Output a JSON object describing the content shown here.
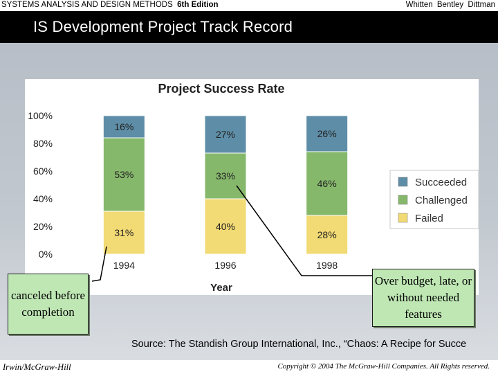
{
  "header": {
    "book_title": "SYSTEMS ANALYSIS AND DESIGN METHODS",
    "edition": "6th Edition",
    "authors": "Whitten  Bentley  Dittman"
  },
  "slide": {
    "title": "IS Development Project Track Record"
  },
  "chart_data": {
    "type": "bar",
    "stacked": true,
    "title": "Project Success Rate",
    "xlabel": "Year",
    "ylabel": "",
    "ylim": [
      0,
      100
    ],
    "yticks": [
      "0%",
      "20%",
      "40%",
      "60%",
      "80%",
      "100%"
    ],
    "categories": [
      "1994",
      "1996",
      "1998"
    ],
    "series": [
      {
        "name": "Failed",
        "values": [
          31,
          40,
          28
        ],
        "labels": [
          "31%",
          "40%",
          "28%"
        ],
        "color": "#f2da74"
      },
      {
        "name": "Challenged",
        "values": [
          53,
          33,
          46
        ],
        "labels": [
          "53%",
          "33%",
          "46%"
        ],
        "color": "#86b86c"
      },
      {
        "name": "Succeeded",
        "values": [
          16,
          27,
          26
        ],
        "labels": [
          "16%",
          "27%",
          "26%"
        ],
        "color": "#5e8ea7"
      }
    ],
    "legend": [
      "Succeeded",
      "Challenged",
      "Failed"
    ],
    "legend_position": "right"
  },
  "callouts": {
    "failed": "canceled before completion",
    "challenged": "Over budget, late, or without needed features"
  },
  "source": "Source: The Standish Group International, Inc., “Chaos: A Recipe for Succe",
  "footer": {
    "publisher": "Irwin/McGraw-Hill",
    "copyright": "Copyright © 2004 The McGraw-Hill Companies. All Rights reserved."
  }
}
